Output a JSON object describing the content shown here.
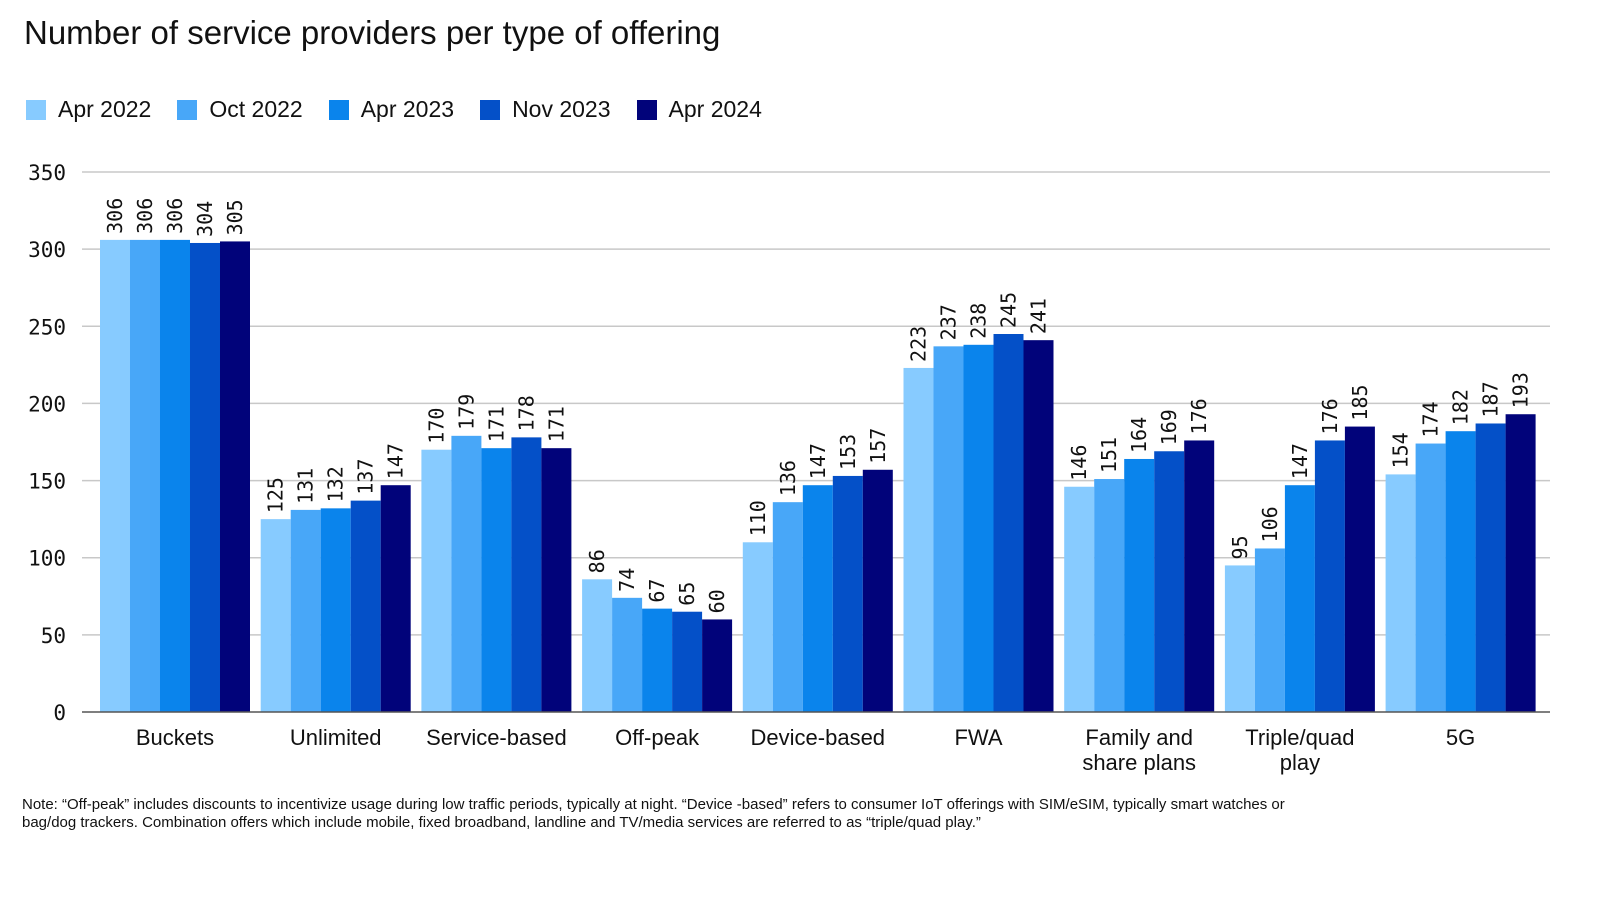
{
  "title": "Number of service providers per type of offering",
  "note": "Note: “Off-peak” includes discounts to incentivize usage during low traffic periods, typically at night. “Device -based” refers to consumer IoT offerings with SIM/eSIM, typically smart watches or bag/dog trackers. Combination offers which include mobile, fixed broadband, landline and TV/media  services are referred to as “triple/quad play.”",
  "chart_data": {
    "type": "bar",
    "title": "Number of service providers per type of offering",
    "xlabel": "",
    "ylabel": "",
    "ylim": [
      0,
      350
    ],
    "yticks": [
      0,
      50,
      100,
      150,
      200,
      250,
      300,
      350
    ],
    "grid": true,
    "legend_position": "top-left",
    "categories": [
      "Buckets",
      "Unlimited",
      "Service-based",
      "Off-peak",
      "Device-based",
      "FWA",
      "Family and share plans",
      "Triple/quad play",
      "5G"
    ],
    "series": [
      {
        "name": "Apr 2022",
        "color": "#87CBFF",
        "values": [
          306,
          125,
          170,
          86,
          110,
          223,
          146,
          95,
          154
        ]
      },
      {
        "name": "Oct 2022",
        "color": "#48A7F8",
        "values": [
          306,
          131,
          179,
          74,
          136,
          237,
          151,
          106,
          174
        ]
      },
      {
        "name": "Apr 2023",
        "color": "#0A84EC",
        "values": [
          306,
          132,
          171,
          67,
          147,
          238,
          164,
          147,
          182
        ]
      },
      {
        "name": "Nov 2023",
        "color": "#0450C8",
        "values": [
          304,
          137,
          178,
          65,
          153,
          245,
          169,
          176,
          187
        ]
      },
      {
        "name": "Apr 2024",
        "color": "#01037A",
        "values": [
          305,
          147,
          171,
          60,
          157,
          241,
          176,
          185,
          193
        ]
      }
    ]
  }
}
